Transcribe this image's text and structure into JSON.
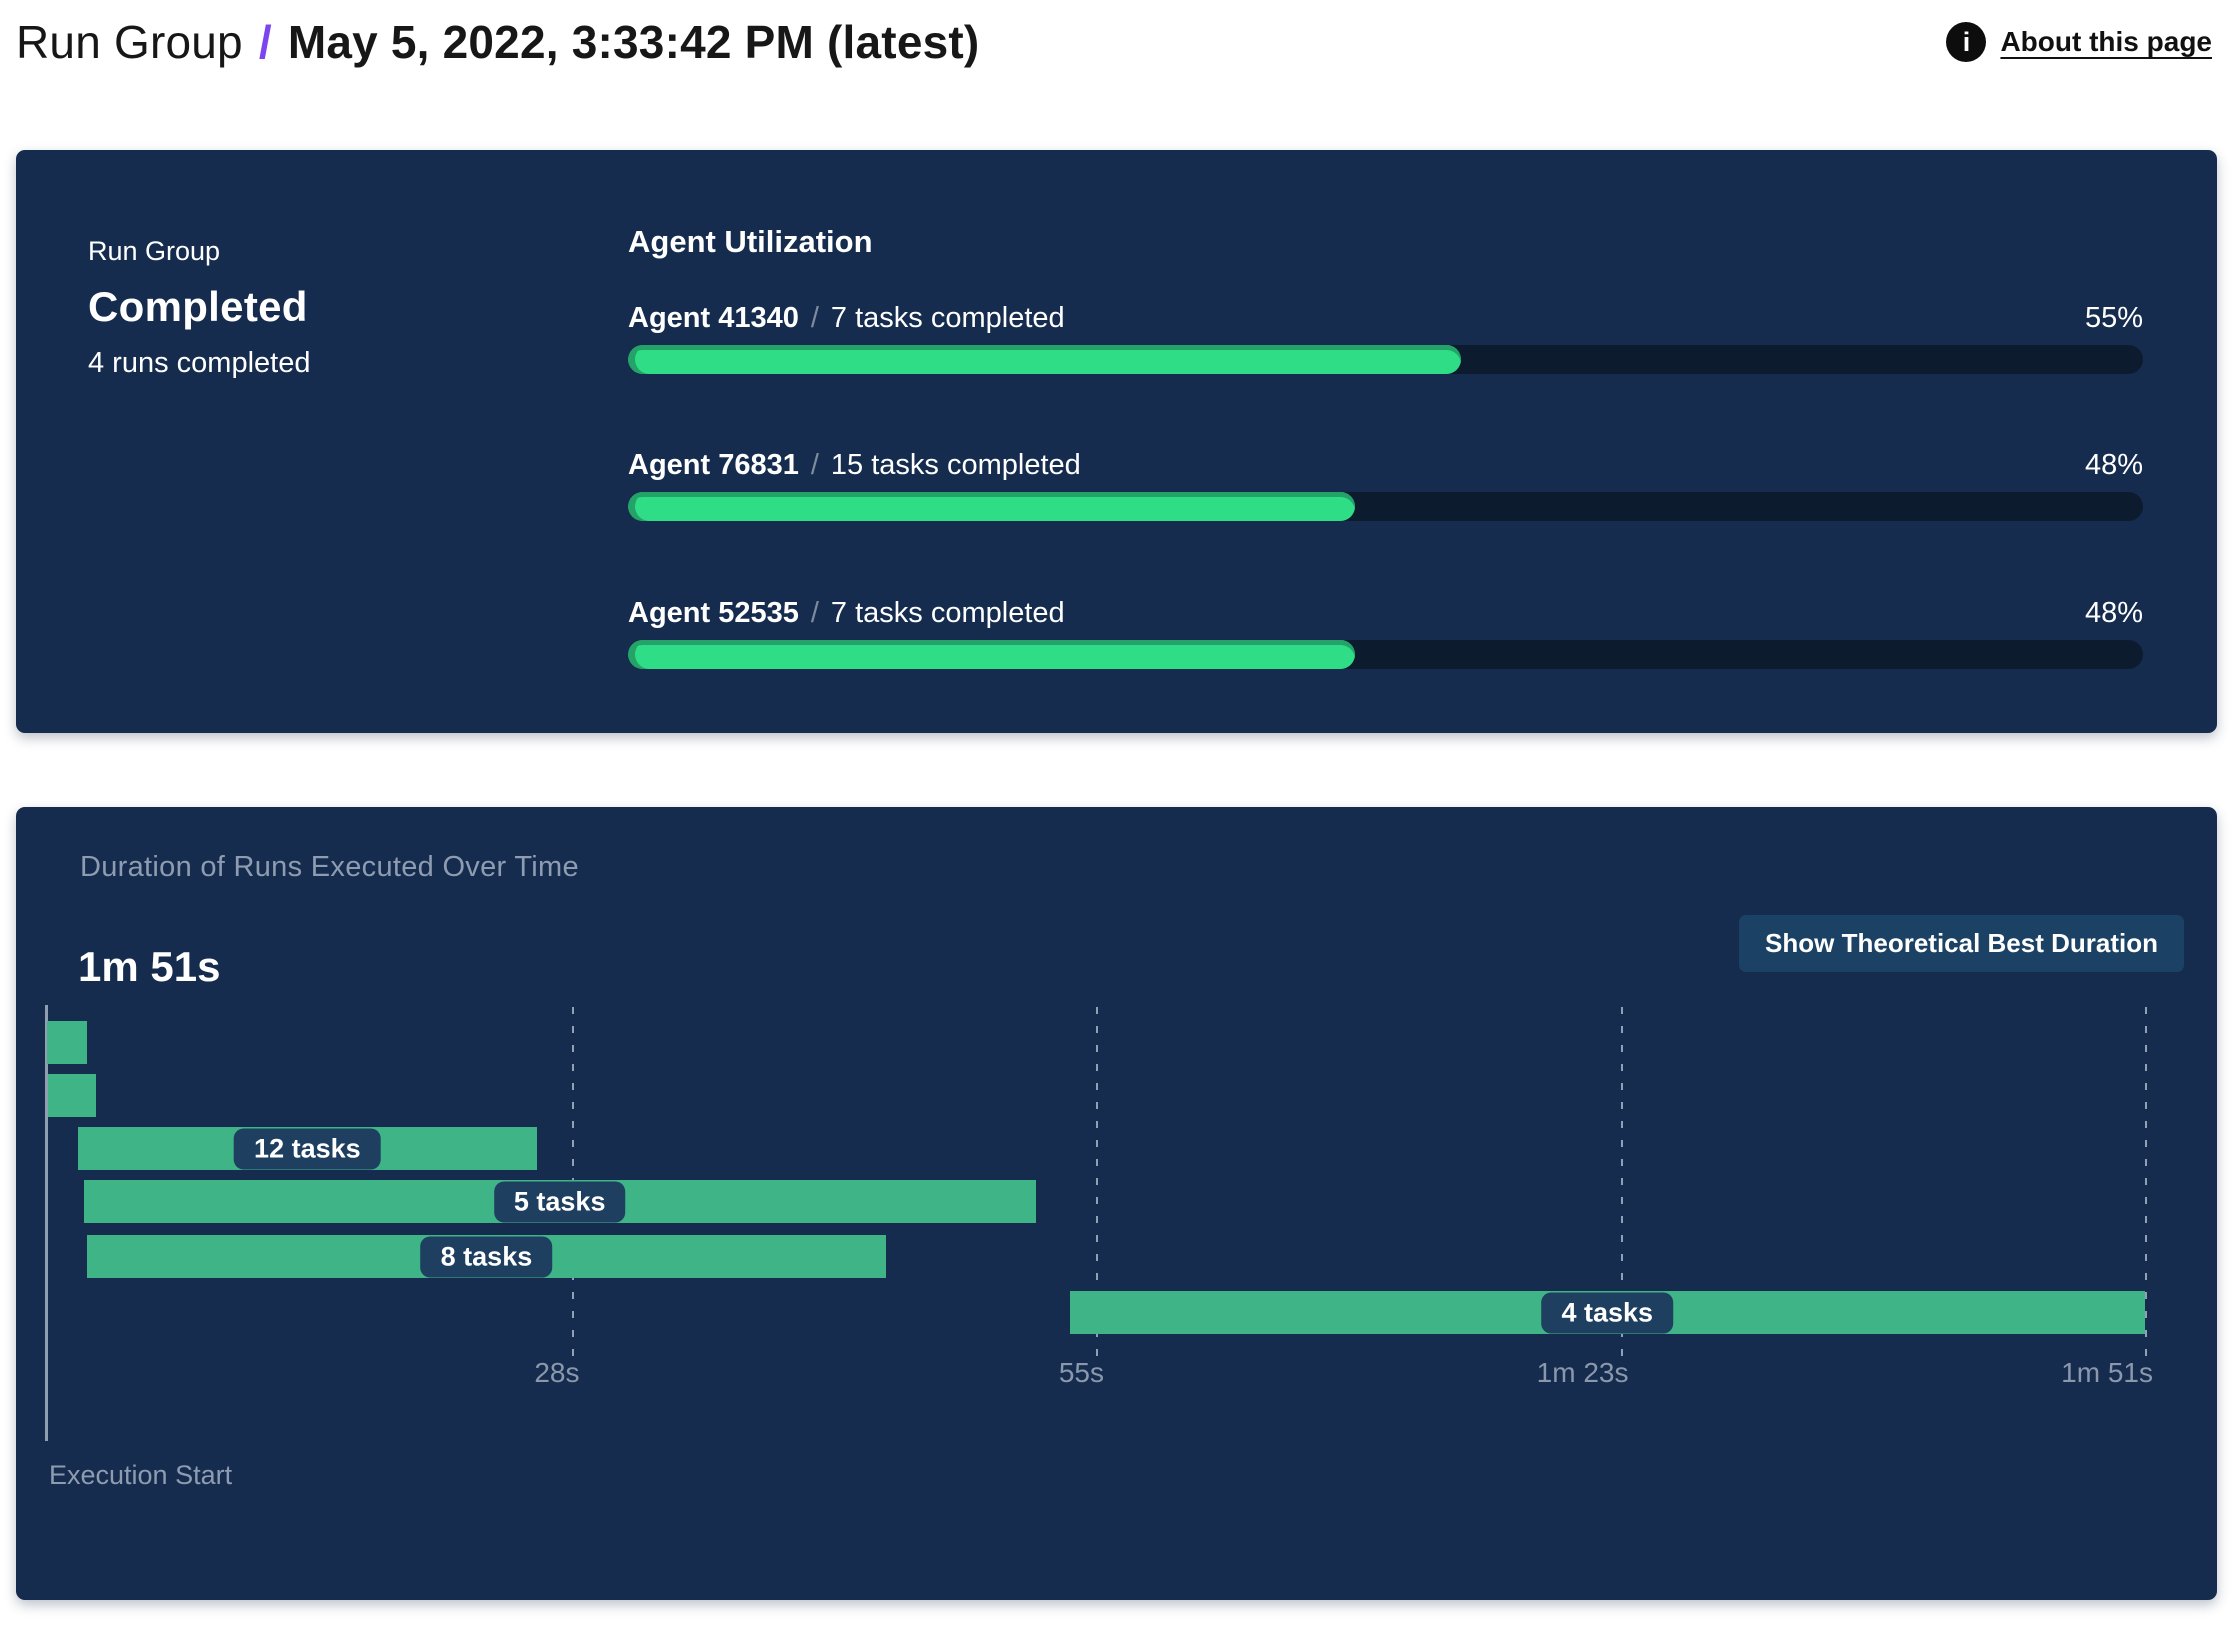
{
  "header": {
    "breadcrumb_root": "Run Group",
    "breadcrumb_separator": "/",
    "title": "May 5, 2022, 3:33:42 PM (latest)",
    "about_link": "About this page",
    "info_icon_glyph": "i"
  },
  "colors": {
    "panel_bg": "#152C4E",
    "track_bg": "#0D1B2E",
    "utilization_fill": "#2EDD85",
    "utilization_fill_edge": "#24A268",
    "gantt_bar": "#3EB487",
    "gantt_label_pill": "#1E3F5F",
    "muted_text": "#8E9CB1",
    "accent_purple": "#7B45F0",
    "button_bg": "#1B4164"
  },
  "run_group_panel": {
    "label": "Run Group",
    "status": "Completed",
    "subtitle": "4 runs completed",
    "utilization": {
      "title": "Agent Utilization",
      "separator": "/",
      "agents": [
        {
          "name": "Agent 41340",
          "tasks": "7 tasks completed",
          "percent": 55,
          "percent_label": "55%"
        },
        {
          "name": "Agent 76831",
          "tasks": "15 tasks completed",
          "percent": 48,
          "percent_label": "48%"
        },
        {
          "name": "Agent 52535",
          "tasks": "7 tasks completed",
          "percent": 48,
          "percent_label": "48%"
        }
      ]
    }
  },
  "duration_panel": {
    "title": "Duration of Runs Executed Over Time",
    "total_duration_label": "1m 51s",
    "button_label": "Show Theoretical Best Duration",
    "axis_origin_label": "Execution Start"
  },
  "chart_data": [
    {
      "type": "bar",
      "title": "Agent Utilization",
      "categories": [
        "Agent 41340",
        "Agent 76831",
        "Agent 52535"
      ],
      "series": [
        {
          "name": "utilization_percent",
          "values": [
            55,
            48,
            48
          ]
        },
        {
          "name": "tasks_completed",
          "values": [
            7,
            15,
            7
          ]
        }
      ],
      "ylim": [
        0,
        100
      ],
      "value_labels": [
        "55%",
        "48%",
        "48%"
      ]
    },
    {
      "type": "gantt",
      "title": "Duration of Runs Executed Over Time",
      "total_duration_label": "1m 51s",
      "total_seconds": 111,
      "unit": "seconds",
      "xlabel": "Execution Start",
      "grid": true,
      "ticks": [
        {
          "label": "28s",
          "seconds": 27.75
        },
        {
          "label": "55s",
          "seconds": 55.5
        },
        {
          "label": "1m 23s",
          "seconds": 83.25
        },
        {
          "label": "1m 51s",
          "seconds": 111
        }
      ],
      "runs": [
        {
          "label": "",
          "start_seconds": 0,
          "end_seconds": 2.1
        },
        {
          "label": "",
          "start_seconds": 0.05,
          "end_seconds": 2.6
        },
        {
          "label": "12 tasks",
          "start_seconds": 1.65,
          "end_seconds": 25.9
        },
        {
          "label": "5 tasks",
          "start_seconds": 1.95,
          "end_seconds": 52.3
        },
        {
          "label": "8 tasks",
          "start_seconds": 2.1,
          "end_seconds": 44.4
        },
        {
          "label": "4 tasks",
          "start_seconds": 54.1,
          "end_seconds": 111
        }
      ]
    }
  ]
}
